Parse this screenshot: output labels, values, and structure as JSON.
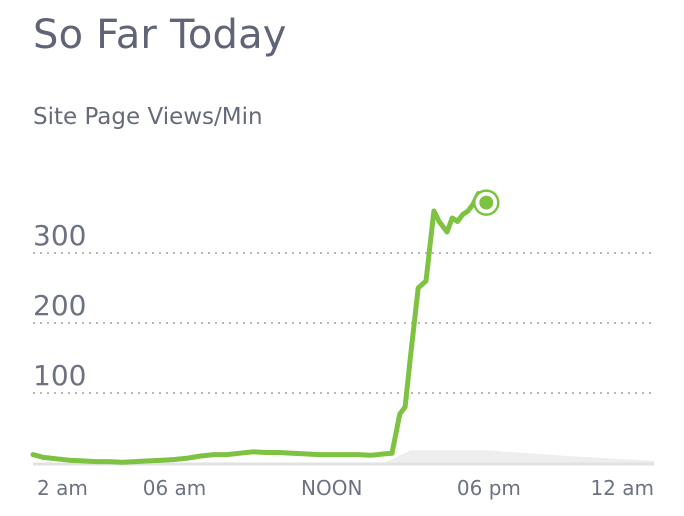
{
  "header": {
    "title": "So Far Today",
    "subtitle": "Site Page Views/Min"
  },
  "colors": {
    "line": "#7ec242",
    "baseline": "#e2e2e2",
    "grid": "#b8b8b8",
    "text": "#666b7a"
  },
  "chart_data": {
    "type": "line",
    "title": "So Far Today",
    "ylabel": "Site Page Views/Min",
    "ylim": [
      0,
      380
    ],
    "yticks": [
      100,
      200,
      300
    ],
    "xticks": [
      {
        "label": "2 am",
        "hour": 2
      },
      {
        "label": "06 am",
        "hour": 6
      },
      {
        "label": "NOON",
        "hour": 12
      },
      {
        "label": "06 pm",
        "hour": 18
      },
      {
        "label": "12 am",
        "hour": 24
      }
    ],
    "xlim": [
      0.6,
      24.3
    ],
    "grid": true,
    "series": [
      {
        "name": "",
        "x": [
          0.6,
          1.0,
          1.5,
          2.0,
          2.5,
          3.0,
          3.5,
          4.0,
          4.5,
          5.0,
          5.5,
          6.0,
          6.5,
          7.0,
          7.5,
          8.0,
          8.5,
          9.0,
          9.5,
          10.0,
          10.5,
          11.0,
          11.5,
          12.0,
          12.5,
          13.0,
          13.5,
          14.0,
          14.3,
          14.6,
          14.8,
          15.0,
          15.3,
          15.6,
          15.9,
          16.1,
          16.4,
          16.6,
          16.8,
          17.0,
          17.2,
          17.4,
          17.6,
          17.8
        ],
        "values": [
          12,
          8,
          6,
          4,
          3,
          2,
          2,
          1,
          2,
          3,
          4,
          5,
          7,
          10,
          12,
          12,
          14,
          16,
          15,
          15,
          14,
          13,
          12,
          12,
          12,
          12,
          11,
          13,
          14,
          70,
          80,
          150,
          250,
          260,
          360,
          345,
          330,
          350,
          345,
          355,
          360,
          370,
          385,
          375
        ]
      },
      {
        "name": "",
        "x": [
          0.6,
          14.0,
          15.0,
          18.0,
          21.0,
          24.3
        ],
        "values": [
          0,
          0,
          18,
          18,
          10,
          3
        ]
      }
    ],
    "annotations": [
      {
        "x": 17.9,
        "y": 372,
        "type": "marker"
      }
    ]
  }
}
